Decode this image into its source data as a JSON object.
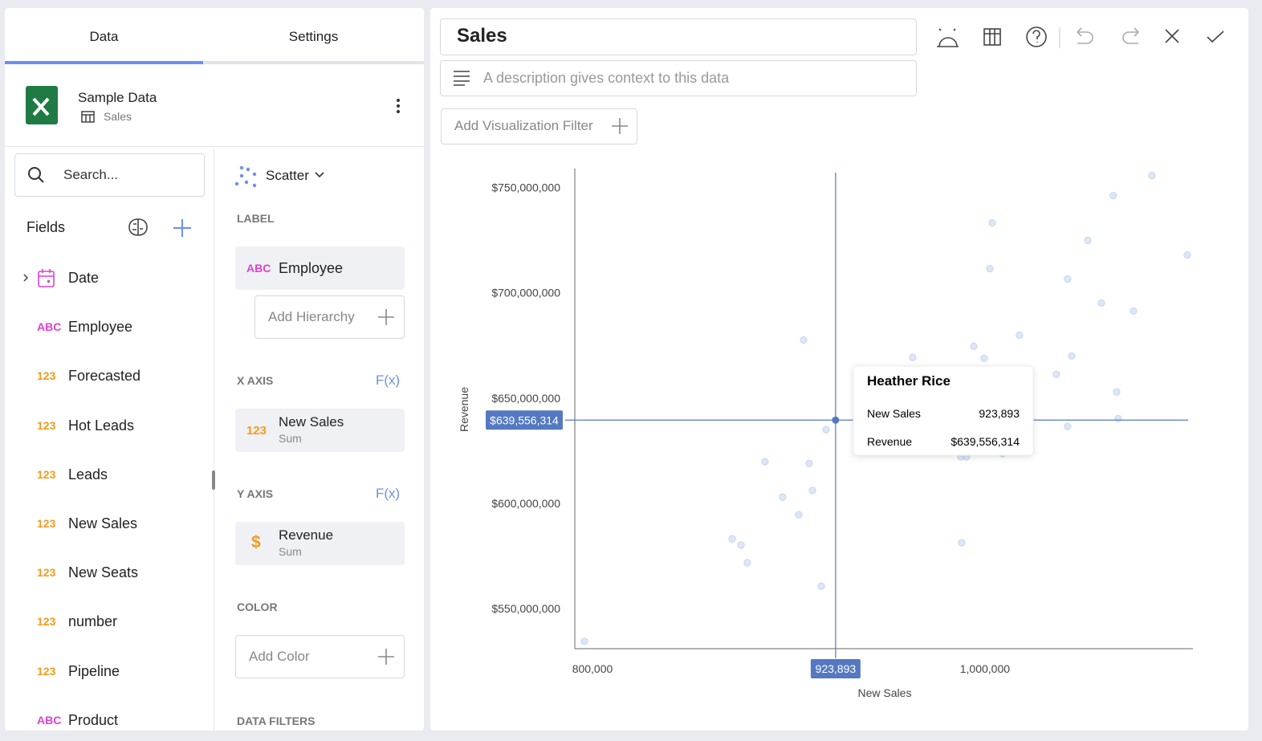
{
  "tabs": [
    "Data",
    "Settings"
  ],
  "source": {
    "name": "Sample Data",
    "table": "Sales"
  },
  "search": "Search...",
  "fields_heading": "Fields",
  "fields": [
    {
      "name": "Date"
    },
    {
      "type": "ABC",
      "color": "#e040d0",
      "name": "Employee"
    },
    {
      "type": "123",
      "color": "#f29a1b",
      "name": "Forecasted"
    },
    {
      "type": "123",
      "color": "#f29a1b",
      "name": "Hot Leads"
    },
    {
      "type": "123",
      "color": "#f29a1b",
      "name": "Leads"
    },
    {
      "type": "123",
      "color": "#f29a1b",
      "name": "New Sales"
    },
    {
      "type": "123",
      "color": "#f29a1b",
      "name": "New Seats"
    },
    {
      "type": "123",
      "color": "#f29a1b",
      "name": "number"
    },
    {
      "type": "123",
      "color": "#f29a1b",
      "name": "Pipeline"
    },
    {
      "type": "ABC",
      "color": "#e040d0",
      "name": "Product"
    }
  ],
  "config": {
    "chart_type": "Scatter",
    "label": {
      "heading": "LABEL",
      "field": {
        "type": "ABC",
        "color": "#e040d0",
        "name": "Employee"
      },
      "add": "Add Hierarchy"
    },
    "x_axis": {
      "heading": "X AXIS",
      "fx": "F(x)",
      "field": {
        "type": "123",
        "color": "#f29a1b",
        "name": "New Sales",
        "agg": "Sum"
      }
    },
    "y_axis": {
      "heading": "Y AXIS",
      "fx": "F(x)",
      "field": {
        "type": "$",
        "color": "#f29a1b",
        "name": "Revenue",
        "agg": "Sum"
      }
    },
    "color": {
      "heading": "COLOR",
      "add": "Add Color"
    },
    "data_filters": {
      "heading": "DATA FILTERS"
    }
  },
  "header": {
    "title": "Sales",
    "description": "A description gives context to this data",
    "filter": "Add Visualization Filter"
  },
  "chart_data": {
    "type": "scatter",
    "xlabel": "New Sales",
    "ylabel": "Revenue",
    "xlim": [
      791000,
      1106000
    ],
    "ylim": [
      531000000,
      759000000
    ],
    "xticks": [
      {
        "value": 800000,
        "label": "800,000"
      },
      {
        "value": 1000000,
        "label": "1,000,000"
      }
    ],
    "yticks": [
      {
        "value": 550000000,
        "label": "$550,000,000"
      },
      {
        "value": 600000000,
        "label": "$600,000,000"
      },
      {
        "value": 650000000,
        "label": "$650,000,000"
      },
      {
        "value": 700000000,
        "label": "$700,000,000"
      },
      {
        "value": 750000000,
        "label": "$750,000,000"
      }
    ],
    "grid": false,
    "series": [
      {
        "color": "#c8d7f1",
        "x": [
          795900,
          907600,
          919000,
          887900,
          910400,
          896900,
          912100,
          905100,
          871200,
          875700,
          878900,
          916600,
          963200,
          988100,
          987700,
          990600,
          1009000,
          994300,
          999600,
          1017600,
          1003700,
          1002500,
          1036400,
          1044200,
          1042100,
          1042100,
          1052400,
          1059300,
          1065400,
          1075700,
          1067100,
          1067900,
          1085100,
          1103100
        ],
        "values": [
          534500000,
          677600000,
          635000000,
          619800000,
          619000000,
          603000000,
          606100000,
          594600000,
          583200000,
          580200000,
          571800000,
          560700000,
          669300000,
          581300000,
          622100000,
          622100000,
          623600000,
          674600000,
          668900000,
          679900000,
          733200000,
          711500000,
          661300000,
          670000000,
          636500000,
          706600000,
          724900000,
          695200000,
          746200000,
          691400000,
          652900000,
          640300000,
          755700000,
          718000000
        ]
      }
    ],
    "highlight": {
      "label": "Heather Rice",
      "color": "#5479c2",
      "x": 923893,
      "y": 639556314,
      "x_label": "923,893",
      "y_label": "$639,556,314"
    }
  }
}
